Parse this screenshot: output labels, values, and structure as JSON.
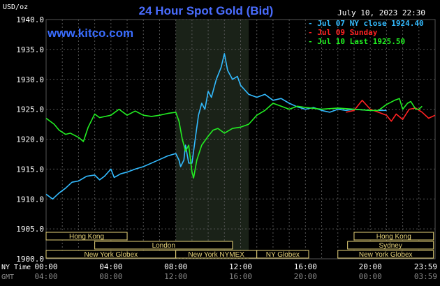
{
  "chart_data": {
    "type": "line",
    "title": "24 Hour Spot Gold (Bid)",
    "unit_label": "USD/oz",
    "site": "www.kitco.com",
    "timestamp": "July 10, 2023 22:30",
    "ylim": [
      1900,
      1940
    ],
    "yticks": [
      "1940.0",
      "1935.0",
      "1930.0",
      "1925.0",
      "1920.0",
      "1915.0",
      "1910.0",
      "1905.0",
      "1900.0"
    ],
    "xlim_hours": [
      0,
      24
    ],
    "x_axis_rows": [
      {
        "label": "NY Time",
        "ticks": [
          "00:00",
          "04:00",
          "08:00",
          "12:00",
          "16:00",
          "20:00",
          "23:59"
        ]
      },
      {
        "label": "GMT",
        "ticks": [
          "04:00",
          "08:00",
          "12:00",
          "16:00",
          "20:00",
          "00:00",
          "03:59"
        ]
      }
    ],
    "grid": true,
    "legend_position": "top-right",
    "series": [
      {
        "name": "Jul 07 NY close 1924.40",
        "color": "#33bbff",
        "points": [
          [
            0.0,
            1910.8
          ],
          [
            0.4,
            1910.0
          ],
          [
            0.8,
            1911.0
          ],
          [
            1.2,
            1911.8
          ],
          [
            1.6,
            1912.8
          ],
          [
            2.0,
            1913.0
          ],
          [
            2.5,
            1913.8
          ],
          [
            3.0,
            1914.0
          ],
          [
            3.3,
            1913.2
          ],
          [
            3.6,
            1913.8
          ],
          [
            4.0,
            1915.0
          ],
          [
            4.2,
            1913.6
          ],
          [
            4.6,
            1914.2
          ],
          [
            5.0,
            1914.5
          ],
          [
            5.5,
            1915.0
          ],
          [
            6.0,
            1915.4
          ],
          [
            6.5,
            1916.0
          ],
          [
            7.0,
            1916.6
          ],
          [
            7.5,
            1917.2
          ],
          [
            8.0,
            1917.6
          ],
          [
            8.2,
            1916.5
          ],
          [
            8.3,
            1915.4
          ],
          [
            8.5,
            1916.5
          ],
          [
            8.6,
            1919.0
          ],
          [
            8.8,
            1916.0
          ],
          [
            9.0,
            1916.0
          ],
          [
            9.2,
            1920.0
          ],
          [
            9.4,
            1924.0
          ],
          [
            9.6,
            1926.0
          ],
          [
            9.8,
            1925.0
          ],
          [
            10.0,
            1928.0
          ],
          [
            10.2,
            1927.0
          ],
          [
            10.5,
            1930.0
          ],
          [
            10.8,
            1932.0
          ],
          [
            11.0,
            1934.3
          ],
          [
            11.2,
            1931.5
          ],
          [
            11.5,
            1930.0
          ],
          [
            11.8,
            1930.5
          ],
          [
            12.0,
            1929.0
          ],
          [
            12.5,
            1927.5
          ],
          [
            13.0,
            1927.0
          ],
          [
            13.5,
            1927.5
          ],
          [
            14.0,
            1926.5
          ],
          [
            14.5,
            1926.8
          ],
          [
            15.0,
            1926.0
          ],
          [
            15.5,
            1925.4
          ],
          [
            16.0,
            1925.0
          ],
          [
            16.5,
            1925.3
          ],
          [
            17.0,
            1924.8
          ],
          [
            17.5,
            1924.5
          ],
          [
            18.0,
            1925.0
          ],
          [
            18.5,
            1924.8
          ],
          [
            19.0,
            1925.0
          ],
          [
            20.0,
            1924.8
          ],
          [
            21.0,
            1924.8
          ]
        ]
      },
      {
        "name": "Jul 09 Sunday",
        "color": "#ff2222",
        "points": [
          [
            18.5,
            1924.5
          ],
          [
            19.0,
            1924.8
          ],
          [
            19.5,
            1926.5
          ],
          [
            20.0,
            1925.0
          ],
          [
            20.5,
            1924.5
          ],
          [
            21.0,
            1924.0
          ],
          [
            21.3,
            1923.0
          ],
          [
            21.6,
            1924.2
          ],
          [
            22.0,
            1923.3
          ],
          [
            22.4,
            1925.0
          ],
          [
            22.8,
            1925.2
          ],
          [
            23.2,
            1924.5
          ],
          [
            23.6,
            1923.5
          ],
          [
            24.0,
            1924.0
          ]
        ]
      },
      {
        "name": "Jul 10 Last 1925.50",
        "color": "#22ee22",
        "points": [
          [
            0.0,
            1923.5
          ],
          [
            0.5,
            1922.5
          ],
          [
            0.8,
            1921.5
          ],
          [
            1.2,
            1920.8
          ],
          [
            1.5,
            1921.0
          ],
          [
            2.0,
            1920.3
          ],
          [
            2.3,
            1919.6
          ],
          [
            2.6,
            1922.0
          ],
          [
            3.0,
            1924.2
          ],
          [
            3.3,
            1923.6
          ],
          [
            4.0,
            1924.0
          ],
          [
            4.5,
            1925.0
          ],
          [
            5.0,
            1924.0
          ],
          [
            5.5,
            1924.7
          ],
          [
            6.0,
            1924.0
          ],
          [
            6.5,
            1923.8
          ],
          [
            7.0,
            1924.0
          ],
          [
            7.5,
            1924.3
          ],
          [
            8.0,
            1924.5
          ],
          [
            8.2,
            1923.0
          ],
          [
            8.4,
            1920.0
          ],
          [
            8.6,
            1918.0
          ],
          [
            8.8,
            1919.0
          ],
          [
            9.0,
            1914.5
          ],
          [
            9.1,
            1913.5
          ],
          [
            9.3,
            1916.5
          ],
          [
            9.6,
            1919.0
          ],
          [
            10.0,
            1920.5
          ],
          [
            10.3,
            1921.5
          ],
          [
            10.6,
            1921.8
          ],
          [
            11.0,
            1921.0
          ],
          [
            11.5,
            1921.8
          ],
          [
            12.0,
            1922.0
          ],
          [
            12.5,
            1922.5
          ],
          [
            13.0,
            1924.0
          ],
          [
            13.5,
            1924.8
          ],
          [
            14.0,
            1926.0
          ],
          [
            14.5,
            1925.5
          ],
          [
            15.0,
            1925.0
          ],
          [
            15.5,
            1925.5
          ],
          [
            16.0,
            1925.3
          ],
          [
            17.0,
            1925.0
          ],
          [
            18.0,
            1925.2
          ],
          [
            19.0,
            1925.0
          ],
          [
            20.0,
            1924.8
          ],
          [
            20.5,
            1924.8
          ],
          [
            21.0,
            1925.8
          ],
          [
            21.5,
            1926.5
          ],
          [
            21.8,
            1926.8
          ],
          [
            22.0,
            1925.0
          ],
          [
            22.3,
            1926.0
          ],
          [
            22.5,
            1926.3
          ],
          [
            22.8,
            1925.0
          ],
          [
            23.0,
            1925.0
          ],
          [
            23.2,
            1925.5
          ]
        ]
      }
    ],
    "shaded_hours": [
      8,
      12.5
    ],
    "sessions": [
      {
        "label": "Hong Kong",
        "start": 0,
        "end": 5,
        "row": 0
      },
      {
        "label": "London",
        "start": 3,
        "end": 11.5,
        "row": 1
      },
      {
        "label": "New York Globex",
        "start": 0,
        "end": 8,
        "row": 2
      },
      {
        "label": "New York NYMEX",
        "start": 8,
        "end": 13,
        "row": 2
      },
      {
        "label": "NY Globex",
        "start": 13,
        "end": 16.2,
        "row": 2
      },
      {
        "label": "Hong Kong",
        "start": 19,
        "end": 23.9,
        "row": 0
      },
      {
        "label": "Sydney",
        "start": 18.6,
        "end": 23.9,
        "row": 1
      },
      {
        "label": "New York Globex",
        "start": 18,
        "end": 23.9,
        "row": 2
      }
    ]
  }
}
